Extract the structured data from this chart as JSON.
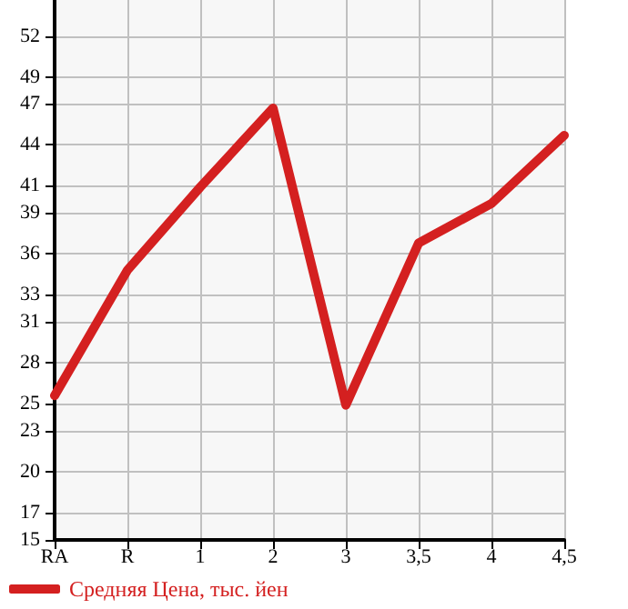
{
  "chart_data": {
    "type": "line",
    "categories": [
      "RA",
      "R",
      "1",
      "2",
      "3",
      "3,5",
      "4",
      "4,5"
    ],
    "series": [
      {
        "name": "Средняя Цена, тыс. йен",
        "color": "#d42020",
        "values": [
          25.6,
          34.8,
          40.9,
          46.7,
          24.9,
          36.8,
          39.7,
          44.7
        ]
      }
    ],
    "ylim": [
      15,
      54.64
    ],
    "yticks": [
      15,
      17,
      20,
      23,
      25,
      28,
      31,
      33,
      36,
      39,
      41,
      44,
      47,
      49,
      52
    ],
    "grid": true,
    "legend": "bottom left",
    "marker": "none",
    "line_style": "solid"
  }
}
